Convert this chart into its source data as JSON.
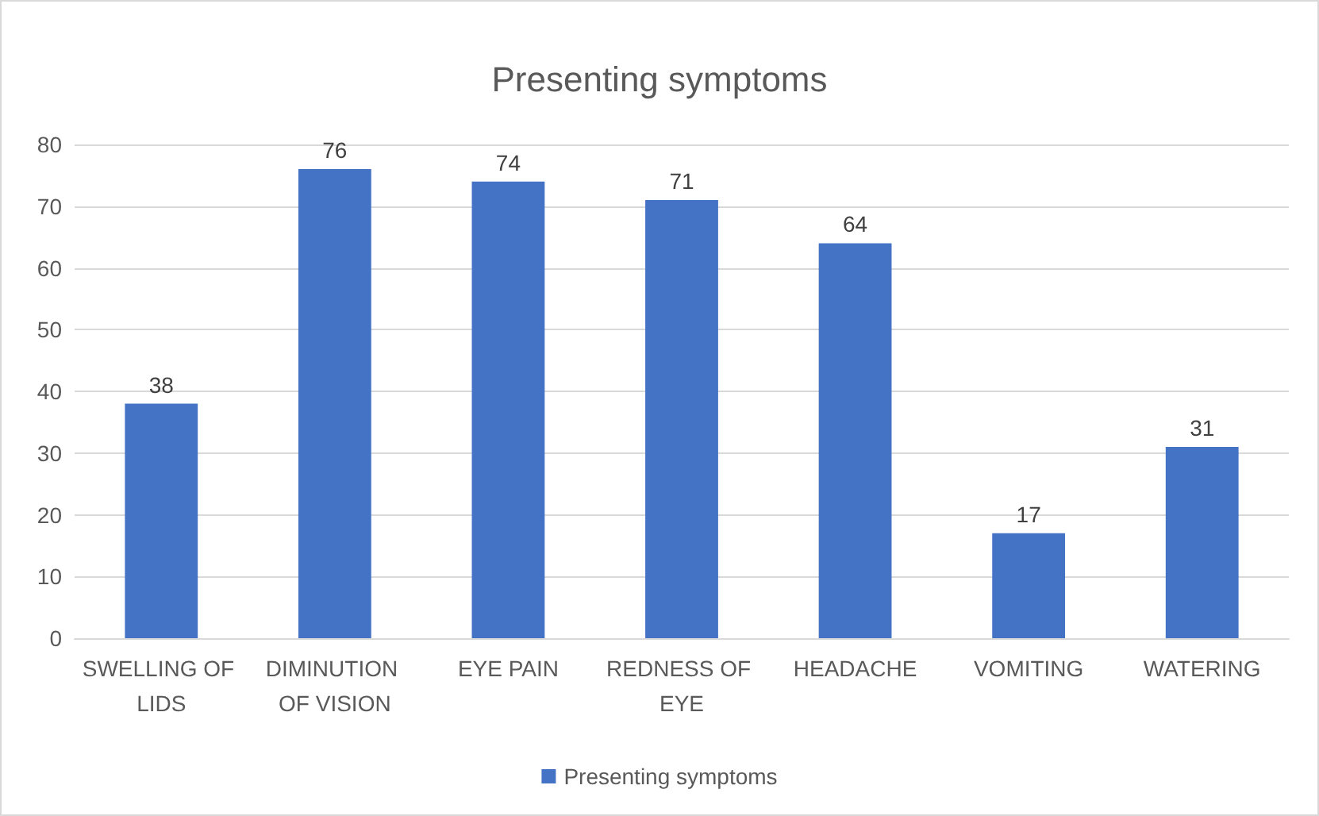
{
  "chart_data": {
    "type": "bar",
    "title": "Presenting symptoms",
    "categories": [
      "SWELLING OF LIDS",
      "DIMINUTION OF VISION",
      "EYE PAIN",
      "REDNESS OF EYE",
      "HEADACHE",
      "VOMITING",
      "WATERING"
    ],
    "series": [
      {
        "name": "Presenting symptoms",
        "color": "#4472c4",
        "values": [
          38,
          76,
          74,
          71,
          64,
          17,
          31
        ]
      }
    ],
    "ylim": [
      0,
      80
    ],
    "yticks": [
      0,
      10,
      20,
      30,
      40,
      50,
      60,
      70,
      80
    ],
    "grid": "y",
    "legend": "bottom",
    "data_labels": true
  }
}
